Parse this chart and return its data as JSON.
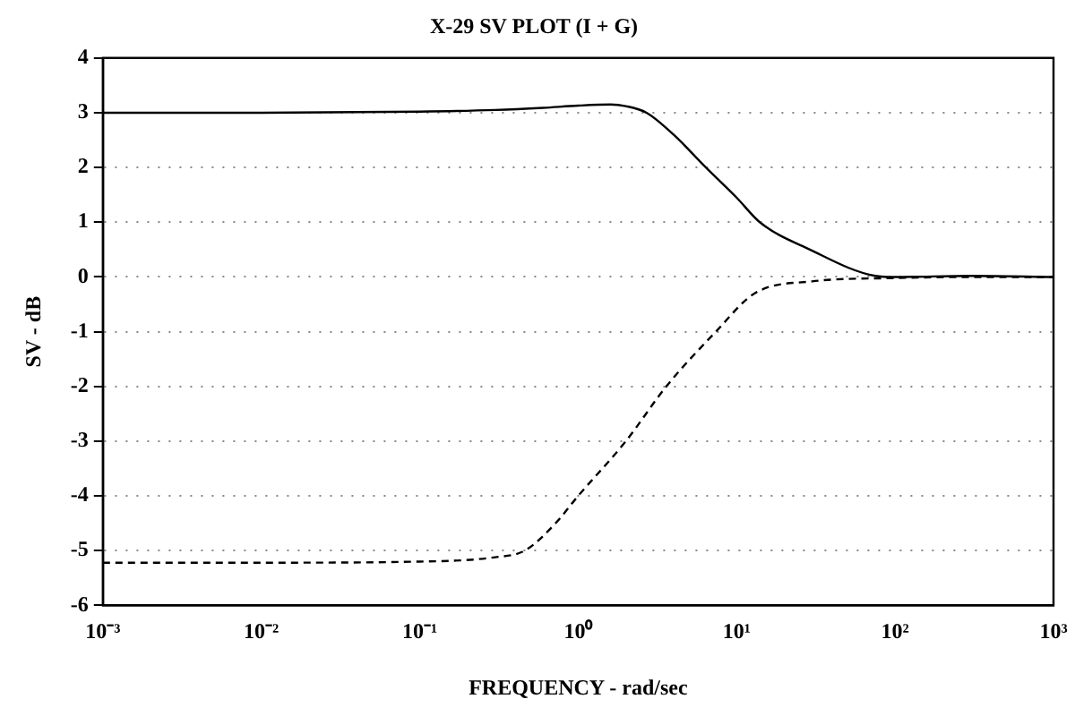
{
  "chart_data": {
    "type": "line",
    "title": "X-29 SV PLOT (I + G)",
    "xlabel": "FREQUENCY - rad/sec",
    "ylabel": "SV - dB",
    "log": "x",
    "xlim": [
      0.001,
      1000
    ],
    "xticks": [
      {
        "value": 0.001,
        "label": "10⁻³"
      },
      {
        "value": 0.01,
        "label": "10⁻²"
      },
      {
        "value": 0.1,
        "label": "10⁻¹"
      },
      {
        "value": 1,
        "label": "10⁰"
      },
      {
        "value": 10,
        "label": "10¹"
      },
      {
        "value": 100,
        "label": "10²"
      },
      {
        "value": 1000,
        "label": "10³"
      }
    ],
    "ylim": [
      -6,
      4
    ],
    "yticks": [
      -6,
      -5,
      -4,
      -3,
      -2,
      -1,
      0,
      1,
      2,
      3,
      4
    ],
    "grid": "y",
    "legend": false,
    "marker": "none",
    "series": [
      {
        "color": "#000000",
        "line_style": "solid",
        "x": [
          0.001,
          0.01,
          0.1,
          0.3,
          0.6,
          1,
          1.6,
          2,
          2.7,
          4,
          6.4,
          10,
          14,
          29,
          75,
          100,
          300,
          1000
        ],
        "values": [
          3.0,
          3.0,
          3.02,
          3.05,
          3.09,
          3.13,
          3.15,
          3.12,
          3.0,
          2.6,
          2.0,
          1.45,
          1.0,
          0.5,
          0.02,
          0,
          0.02,
          0
        ]
      },
      {
        "color": "#000000",
        "line_style": "dashed",
        "x": [
          0.001,
          0.01,
          0.1,
          0.3,
          0.46,
          0.72,
          1,
          2,
          3.6,
          7.4,
          13,
          30,
          100,
          300,
          1000
        ],
        "values": [
          -5.22,
          -5.22,
          -5.2,
          -5.12,
          -5.0,
          -4.5,
          -4.0,
          -3.0,
          -2.0,
          -1.0,
          -0.3,
          -0.08,
          -0.02,
          0,
          0
        ]
      }
    ]
  }
}
